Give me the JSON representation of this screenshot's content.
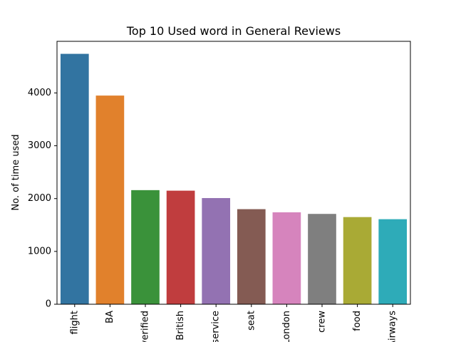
{
  "chart_data": {
    "type": "bar",
    "title": "Top 10 Used word in General Reviews",
    "xlabel": "",
    "ylabel": "No. of time used",
    "categories": [
      "flight",
      "BA",
      "verified",
      "British",
      "service",
      "seat",
      "London",
      "crew",
      "food",
      "Airways"
    ],
    "values": [
      4740,
      3950,
      2160,
      2150,
      2010,
      1800,
      1740,
      1710,
      1650,
      1610
    ],
    "colors": [
      "#3274a1",
      "#e1812c",
      "#3a923a",
      "#c03d3e",
      "#9372b2",
      "#845b53",
      "#d684bd",
      "#7f7f7f",
      "#a9aa35",
      "#2eabb8"
    ],
    "yticks": [
      0,
      1000,
      2000,
      3000,
      4000
    ],
    "ylim": [
      0,
      4977
    ],
    "grid": false,
    "legend": "none"
  }
}
